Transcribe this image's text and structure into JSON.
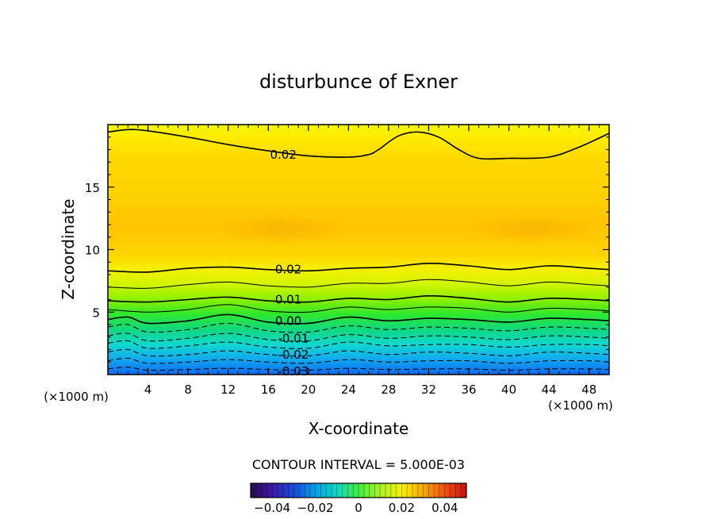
{
  "chart_data": {
    "type": "contour",
    "title": "disturbunce of Exner",
    "xlabel": "X-coordinate",
    "ylabel": "Z-coordinate",
    "x_unit": "(×1000 m)",
    "y_unit": "(×1000 m)",
    "xlim": [
      0,
      50
    ],
    "ylim": [
      0,
      20
    ],
    "x_ticks": [
      4,
      8,
      12,
      16,
      20,
      24,
      28,
      32,
      36,
      40,
      44,
      48
    ],
    "y_ticks": [
      5,
      10,
      15
    ],
    "contour_interval_text": "CONTOUR INTERVAL = 5.000E-03",
    "contours": [
      {
        "level": 0.02,
        "label": "0.02",
        "style": "solid-thick",
        "x": [
          0,
          2,
          4,
          8,
          12,
          16,
          20,
          24,
          26,
          27,
          29,
          31,
          33,
          35,
          37,
          40,
          44,
          47,
          50
        ],
        "z": [
          19.4,
          19.6,
          19.5,
          19.0,
          18.4,
          17.9,
          17.5,
          17.4,
          17.6,
          18.0,
          19.1,
          19.4,
          19.0,
          18.0,
          17.3,
          17.3,
          17.4,
          18.2,
          19.3
        ],
        "label_x": 17.5,
        "label_z": 17.6
      },
      {
        "level": 0.02,
        "label": "0.02",
        "style": "solid-thick",
        "x": [
          0,
          4,
          8,
          12,
          16,
          20,
          24,
          28,
          32,
          36,
          40,
          44,
          48,
          50
        ],
        "z": [
          8.3,
          8.2,
          8.5,
          8.6,
          8.4,
          8.3,
          8.5,
          8.6,
          8.9,
          8.7,
          8.4,
          8.7,
          8.5,
          8.4
        ],
        "label_x": 18,
        "label_z": 8.4
      },
      {
        "level": 0.015,
        "label": "",
        "style": "solid-thin",
        "x": [
          0,
          4,
          8,
          12,
          16,
          20,
          24,
          28,
          32,
          36,
          40,
          44,
          48,
          50
        ],
        "z": [
          7.0,
          6.9,
          7.2,
          7.4,
          7.1,
          7.0,
          7.3,
          7.3,
          7.6,
          7.4,
          7.1,
          7.4,
          7.2,
          7.1
        ],
        "label_x": 0,
        "label_z": 0
      },
      {
        "level": 0.01,
        "label": "0.01",
        "style": "solid-thick",
        "x": [
          0,
          4,
          8,
          12,
          16,
          20,
          24,
          28,
          32,
          36,
          40,
          44,
          48,
          50
        ],
        "z": [
          5.9,
          5.8,
          6.0,
          6.2,
          5.9,
          5.8,
          6.1,
          6.0,
          6.3,
          6.1,
          5.8,
          6.1,
          6.0,
          5.9
        ],
        "label_x": 18,
        "label_z": 6.0
      },
      {
        "level": 0.005,
        "label": "",
        "style": "solid-thin",
        "x": [
          0,
          4,
          8,
          12,
          16,
          20,
          24,
          28,
          32,
          36,
          40,
          44,
          48,
          50
        ],
        "z": [
          5.2,
          5.0,
          5.2,
          5.6,
          5.1,
          5.0,
          5.4,
          5.2,
          5.4,
          5.3,
          5.0,
          5.3,
          5.2,
          5.1
        ],
        "label_x": 0,
        "label_z": 0
      },
      {
        "level": 0.0,
        "label": "0.00",
        "style": "solid-thick",
        "x": [
          0,
          2,
          4,
          8,
          12,
          16,
          20,
          24,
          28,
          32,
          36,
          40,
          44,
          48,
          50
        ],
        "z": [
          4.4,
          4.6,
          4.1,
          4.3,
          4.8,
          4.2,
          4.1,
          4.6,
          4.3,
          4.5,
          4.4,
          4.2,
          4.5,
          4.4,
          4.3
        ],
        "label_x": 18,
        "label_z": 4.3
      },
      {
        "level": -0.005,
        "label": "",
        "style": "dashed",
        "x": [
          0,
          2,
          4,
          8,
          12,
          16,
          20,
          24,
          28,
          32,
          36,
          40,
          44,
          48,
          50
        ],
        "z": [
          3.8,
          4.0,
          3.4,
          3.6,
          4.1,
          3.5,
          3.4,
          3.9,
          3.6,
          3.8,
          3.7,
          3.5,
          3.8,
          3.7,
          3.6
        ],
        "label_x": 0,
        "label_z": 0
      },
      {
        "level": -0.01,
        "label": "-0.01",
        "style": "dashed",
        "x": [
          0,
          2,
          4,
          8,
          12,
          16,
          20,
          24,
          28,
          32,
          36,
          40,
          44,
          48,
          50
        ],
        "z": [
          3.1,
          3.3,
          2.7,
          2.9,
          3.3,
          2.8,
          2.7,
          3.2,
          2.9,
          3.1,
          3.0,
          2.8,
          3.1,
          3.0,
          2.9
        ],
        "label_x": 18.5,
        "label_z": 2.9
      },
      {
        "level": -0.015,
        "label": "",
        "style": "dashed",
        "x": [
          0,
          2,
          4,
          8,
          12,
          16,
          20,
          24,
          28,
          32,
          36,
          40,
          44,
          48,
          50
        ],
        "z": [
          2.5,
          2.7,
          2.1,
          2.3,
          2.6,
          2.2,
          2.1,
          2.6,
          2.3,
          2.4,
          2.4,
          2.2,
          2.4,
          2.4,
          2.3
        ],
        "label_x": 0,
        "label_z": 0
      },
      {
        "level": -0.02,
        "label": "-0.02",
        "style": "dashed",
        "x": [
          0,
          2,
          4,
          8,
          12,
          16,
          20,
          24,
          28,
          32,
          36,
          40,
          44,
          48,
          50
        ],
        "z": [
          1.8,
          2.0,
          1.5,
          1.6,
          1.9,
          1.6,
          1.5,
          1.9,
          1.6,
          1.8,
          1.7,
          1.5,
          1.8,
          1.7,
          1.6
        ],
        "label_x": 18.5,
        "label_z": 1.6
      },
      {
        "level": -0.025,
        "label": "",
        "style": "dashed",
        "x": [
          0,
          2,
          4,
          8,
          12,
          16,
          20,
          24,
          28,
          32,
          36,
          40,
          44,
          48,
          50
        ],
        "z": [
          1.1,
          1.3,
          0.9,
          1.0,
          1.2,
          1.0,
          0.9,
          1.2,
          1.0,
          1.1,
          1.1,
          0.9,
          1.1,
          1.1,
          1.0
        ],
        "label_x": 0,
        "label_z": 0
      },
      {
        "level": -0.03,
        "label": "-0.03",
        "style": "dashed",
        "x": [
          0,
          2,
          4,
          8,
          12,
          16,
          20,
          24,
          28,
          32,
          36,
          40,
          44,
          48,
          50
        ],
        "z": [
          0.45,
          0.6,
          0.35,
          0.4,
          0.5,
          0.4,
          0.35,
          0.5,
          0.4,
          0.45,
          0.45,
          0.35,
          0.45,
          0.45,
          0.4
        ],
        "label_x": 18.5,
        "label_z": 0.25
      }
    ],
    "colorbar": {
      "min": -0.05,
      "max": 0.05,
      "tick_values": [
        -0.04,
        -0.02,
        0,
        0.02,
        0.04
      ],
      "tick_labels": [
        "−0.04",
        "−0.02",
        "0",
        "0.02",
        "0.04"
      ],
      "colors": [
        "#2a0a4a",
        "#3a1aa8",
        "#1b4ad8",
        "#0aa0e8",
        "#10d8c0",
        "#40ee40",
        "#a8f028",
        "#f8f000",
        "#f8a800",
        "#f05010",
        "#c81010"
      ]
    }
  }
}
